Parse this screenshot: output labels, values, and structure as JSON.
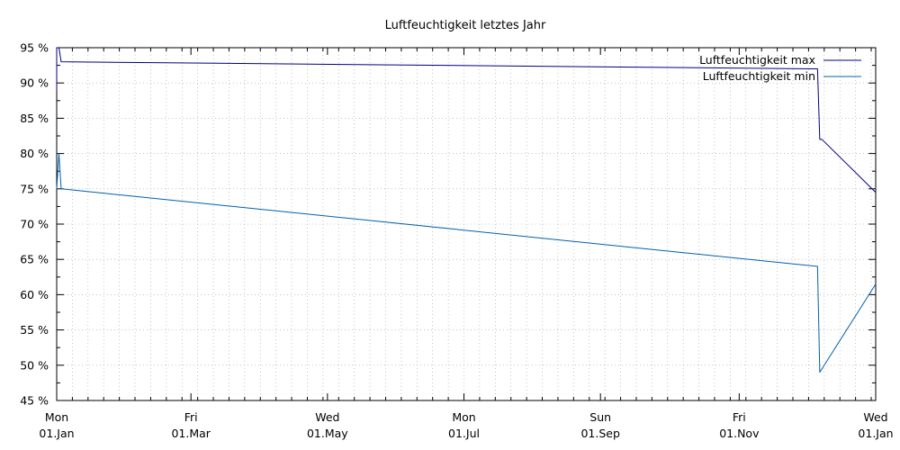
{
  "chart_data": {
    "type": "line",
    "title": "Luftfeuchtigkeit letztes Jahr",
    "xlabel": "",
    "ylabel": "",
    "x_range": [
      "2018-01-01",
      "2019-01-02"
    ],
    "ylim": [
      45,
      95
    ],
    "y_ticks": [
      {
        "value": 45,
        "label": "45 %"
      },
      {
        "value": 50,
        "label": "50 %"
      },
      {
        "value": 55,
        "label": "55 %"
      },
      {
        "value": 60,
        "label": "60 %"
      },
      {
        "value": 65,
        "label": "65 %"
      },
      {
        "value": 70,
        "label": "70 %"
      },
      {
        "value": 75,
        "label": "75 %"
      },
      {
        "value": 80,
        "label": "80 %"
      },
      {
        "value": 85,
        "label": "85 %"
      },
      {
        "value": 90,
        "label": "90 %"
      },
      {
        "value": 95,
        "label": "95 %"
      }
    ],
    "x_ticks": [
      {
        "date": "2018-01-01",
        "day": "Mon",
        "label": "01.Jan"
      },
      {
        "date": "2018-03-02",
        "day": "Fri",
        "label": "01.Mar"
      },
      {
        "date": "2018-05-02",
        "day": "Wed",
        "label": "01.May"
      },
      {
        "date": "2018-07-02",
        "day": "Mon",
        "label": "01.Jul"
      },
      {
        "date": "2018-09-01",
        "day": "Sun",
        "label": "01.Sep"
      },
      {
        "date": "2018-11-02",
        "day": "Fri",
        "label": "01.Nov"
      },
      {
        "date": "2019-01-02",
        "day": "Wed",
        "label": "01.Jan"
      }
    ],
    "grid": true,
    "legend_position": "top-right",
    "series": [
      {
        "name": "Luftfeuchtigkeit max",
        "color": "#000080",
        "points": [
          [
            "2018-01-01",
            89
          ],
          [
            "2018-01-01",
            95
          ],
          [
            "2018-01-02",
            95
          ],
          [
            "2018-01-03",
            93
          ],
          [
            "2018-12-07",
            92
          ],
          [
            "2018-12-08",
            82
          ],
          [
            "2018-12-09",
            82
          ],
          [
            "2019-01-02",
            74.5
          ]
        ]
      },
      {
        "name": "Luftfeuchtigkeit min",
        "color": "#0060ad",
        "points": [
          [
            "2018-01-01",
            75
          ],
          [
            "2018-01-02",
            80
          ],
          [
            "2018-01-03",
            75
          ],
          [
            "2018-12-07",
            64
          ],
          [
            "2018-12-08",
            49
          ],
          [
            "2019-01-02",
            61.5
          ]
        ]
      }
    ]
  }
}
